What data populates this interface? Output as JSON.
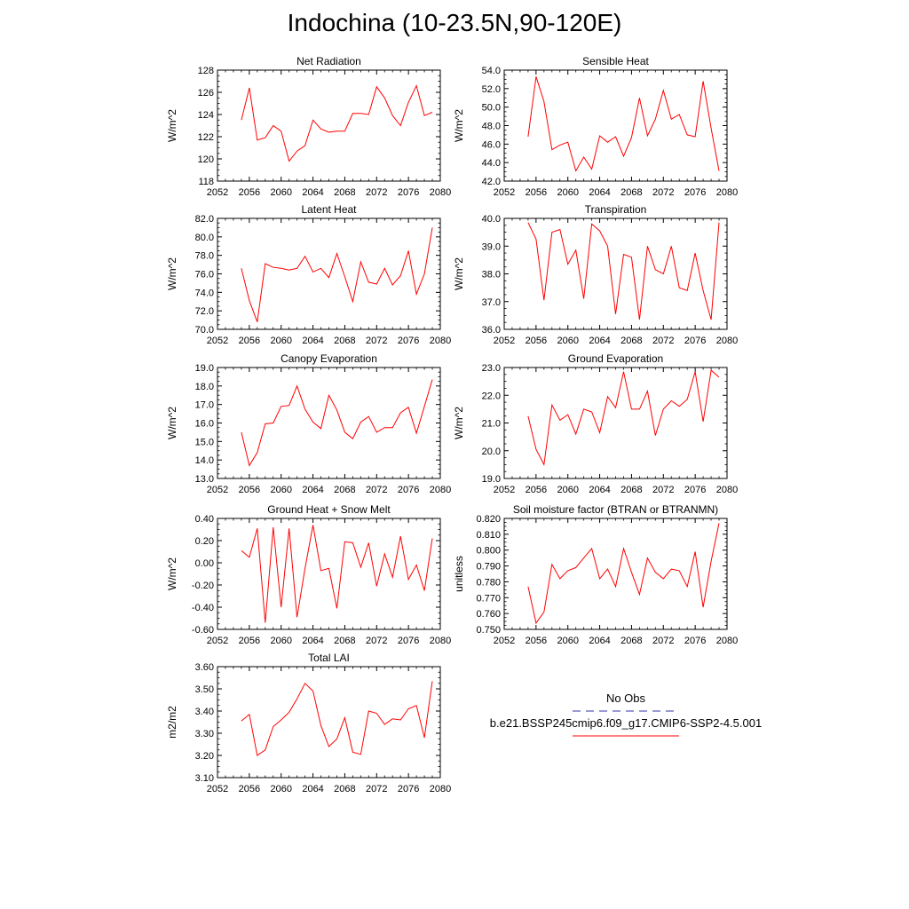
{
  "title": "Indochina (10-23.5N,90-120E)",
  "legend": {
    "obs_label": "No Obs",
    "obs_color": "#3333aa",
    "model_label": "b.e21.BSSP245cmip6.f09_g17.CMIP6-SSP2-4.5.001",
    "model_color": "#ff0000"
  },
  "chart_data": [
    {
      "type": "line",
      "title": "Net Radiation",
      "ylabel": "W/m^2",
      "xlim": [
        2052,
        2080
      ],
      "ylim": [
        118,
        128
      ],
      "xticks": [
        "2052",
        "2056",
        "2060",
        "2064",
        "2068",
        "2072",
        "2076",
        "2080"
      ],
      "yticks": [
        "118",
        "120",
        "122",
        "124",
        "126",
        "128"
      ],
      "series": [
        {
          "color": "#ff0000",
          "x": [
            2055,
            2056,
            2057,
            2058,
            2059,
            2060,
            2061,
            2062,
            2063,
            2064,
            2065,
            2066,
            2067,
            2068,
            2069,
            2070,
            2071,
            2072,
            2073,
            2074,
            2075,
            2076,
            2077,
            2078,
            2079
          ],
          "y": [
            123.5,
            126.4,
            121.7,
            121.9,
            123.0,
            122.5,
            119.8,
            120.7,
            121.2,
            123.5,
            122.7,
            122.4,
            122.5,
            122.5,
            124.1,
            124.1,
            124.0,
            126.5,
            125.5,
            123.9,
            123.0,
            125.1,
            126.6,
            123.9,
            124.2
          ]
        }
      ]
    },
    {
      "type": "line",
      "title": "Sensible Heat",
      "ylabel": "W/m^2",
      "xlim": [
        2052,
        2080
      ],
      "ylim": [
        42,
        54
      ],
      "xticks": [
        "2052",
        "2056",
        "2060",
        "2064",
        "2068",
        "2072",
        "2076",
        "2080"
      ],
      "yticks": [
        "42.0",
        "44.0",
        "46.0",
        "48.0",
        "50.0",
        "52.0",
        "54.0"
      ],
      "series": [
        {
          "color": "#ff0000",
          "x": [
            2055,
            2056,
            2057,
            2058,
            2059,
            2060,
            2061,
            2062,
            2063,
            2064,
            2065,
            2066,
            2067,
            2068,
            2069,
            2070,
            2071,
            2072,
            2073,
            2074,
            2075,
            2076,
            2077,
            2078,
            2079
          ],
          "y": [
            46.8,
            53.3,
            50.6,
            45.4,
            45.9,
            46.2,
            43.1,
            44.6,
            43.3,
            46.9,
            46.2,
            46.8,
            44.7,
            46.7,
            51.0,
            46.9,
            48.7,
            51.8,
            48.7,
            49.2,
            47.0,
            46.8,
            52.8,
            47.7,
            43.1
          ]
        }
      ]
    },
    {
      "type": "line",
      "title": "Latent Heat",
      "ylabel": "W/m^2",
      "xlim": [
        2052,
        2080
      ],
      "ylim": [
        70,
        82
      ],
      "xticks": [
        "2052",
        "2056",
        "2060",
        "2064",
        "2068",
        "2072",
        "2076",
        "2080"
      ],
      "yticks": [
        "70.0",
        "72.0",
        "74.0",
        "76.0",
        "78.0",
        "80.0",
        "82.0"
      ],
      "series": [
        {
          "color": "#ff0000",
          "x": [
            2055,
            2056,
            2057,
            2058,
            2059,
            2060,
            2061,
            2062,
            2063,
            2064,
            2065,
            2066,
            2067,
            2068,
            2069,
            2070,
            2071,
            2072,
            2073,
            2074,
            2075,
            2076,
            2077,
            2078,
            2079
          ],
          "y": [
            76.6,
            73.1,
            70.8,
            77.1,
            76.7,
            76.6,
            76.4,
            76.6,
            77.9,
            76.2,
            76.6,
            75.6,
            78.2,
            75.7,
            73.0,
            77.3,
            75.1,
            74.9,
            76.6,
            74.8,
            75.8,
            78.5,
            73.8,
            76.0,
            81.0
          ]
        }
      ]
    },
    {
      "type": "line",
      "title": "Transpiration",
      "ylabel": "W/m^2",
      "xlim": [
        2052,
        2080
      ],
      "ylim": [
        36,
        40
      ],
      "xticks": [
        "2052",
        "2056",
        "2060",
        "2064",
        "2068",
        "2072",
        "2076",
        "2080"
      ],
      "yticks": [
        "36.0",
        "37.0",
        "38.0",
        "39.0",
        "40.0"
      ],
      "series": [
        {
          "color": "#ff0000",
          "x": [
            2055,
            2056,
            2057,
            2058,
            2059,
            2060,
            2061,
            2062,
            2063,
            2064,
            2065,
            2066,
            2067,
            2068,
            2069,
            2070,
            2071,
            2072,
            2073,
            2074,
            2075,
            2076,
            2077,
            2078,
            2079
          ],
          "y": [
            39.85,
            39.25,
            37.05,
            39.5,
            39.6,
            38.35,
            38.85,
            37.1,
            39.8,
            39.55,
            39.0,
            36.55,
            38.7,
            38.6,
            36.35,
            39.0,
            38.15,
            38.0,
            39.0,
            37.5,
            37.4,
            38.75,
            37.4,
            36.35,
            39.85
          ]
        }
      ]
    },
    {
      "type": "line",
      "title": "Canopy Evaporation",
      "ylabel": "W/m^2",
      "xlim": [
        2052,
        2080
      ],
      "ylim": [
        13,
        19
      ],
      "xticks": [
        "2052",
        "2056",
        "2060",
        "2064",
        "2068",
        "2072",
        "2076",
        "2080"
      ],
      "yticks": [
        "13.0",
        "14.0",
        "15.0",
        "16.0",
        "17.0",
        "18.0",
        "19.0"
      ],
      "series": [
        {
          "color": "#ff0000",
          "x": [
            2055,
            2056,
            2057,
            2058,
            2059,
            2060,
            2061,
            2062,
            2063,
            2064,
            2065,
            2066,
            2067,
            2068,
            2069,
            2070,
            2071,
            2072,
            2073,
            2074,
            2075,
            2076,
            2077,
            2078,
            2079
          ],
          "y": [
            15.5,
            13.7,
            14.4,
            15.95,
            16.0,
            16.9,
            16.95,
            18.0,
            16.75,
            16.05,
            15.7,
            17.5,
            16.7,
            15.5,
            15.15,
            16.05,
            16.35,
            15.5,
            15.75,
            15.75,
            16.55,
            16.85,
            15.45,
            16.9,
            18.35
          ]
        }
      ]
    },
    {
      "type": "line",
      "title": "Ground Evaporation",
      "ylabel": "W/m^2",
      "xlim": [
        2052,
        2080
      ],
      "ylim": [
        19,
        23
      ],
      "xticks": [
        "2052",
        "2056",
        "2060",
        "2064",
        "2068",
        "2072",
        "2076",
        "2080"
      ],
      "yticks": [
        "19.0",
        "20.0",
        "21.0",
        "22.0",
        "23.0"
      ],
      "series": [
        {
          "color": "#ff0000",
          "x": [
            2055,
            2056,
            2057,
            2058,
            2059,
            2060,
            2061,
            2062,
            2063,
            2064,
            2065,
            2066,
            2067,
            2068,
            2069,
            2070,
            2071,
            2072,
            2073,
            2074,
            2075,
            2076,
            2077,
            2078,
            2079
          ],
          "y": [
            21.25,
            20.05,
            19.5,
            21.65,
            21.1,
            21.3,
            20.6,
            21.5,
            21.4,
            20.65,
            21.95,
            21.55,
            22.85,
            21.5,
            21.5,
            22.15,
            20.55,
            21.5,
            21.8,
            21.6,
            21.85,
            22.85,
            21.05,
            22.9,
            22.65
          ]
        }
      ]
    },
    {
      "type": "line",
      "title": "Ground Heat + Snow Melt",
      "ylabel": "W/m^2",
      "xlim": [
        2052,
        2080
      ],
      "ylim": [
        -0.6,
        0.4
      ],
      "xticks": [
        "2052",
        "2056",
        "2060",
        "2064",
        "2068",
        "2072",
        "2076",
        "2080"
      ],
      "yticks": [
        "-0.60",
        "-0.40",
        "-0.20",
        "0.00",
        "0.20",
        "0.40"
      ],
      "series": [
        {
          "color": "#ff0000",
          "x": [
            2055,
            2056,
            2057,
            2058,
            2059,
            2060,
            2061,
            2062,
            2063,
            2064,
            2065,
            2066,
            2067,
            2068,
            2069,
            2070,
            2071,
            2072,
            2073,
            2074,
            2075,
            2076,
            2077,
            2078,
            2079
          ],
          "y": [
            0.11,
            0.05,
            0.31,
            -0.54,
            0.32,
            -0.4,
            0.31,
            -0.49,
            -0.05,
            0.34,
            -0.07,
            -0.05,
            -0.41,
            0.19,
            0.18,
            -0.04,
            0.18,
            -0.21,
            0.08,
            -0.13,
            0.24,
            -0.15,
            -0.02,
            -0.25,
            0.22
          ]
        }
      ]
    },
    {
      "type": "line",
      "title": "Soil moisture factor (BTRAN or BTRANMN)",
      "ylabel": "unitless",
      "xlim": [
        2052,
        2080
      ],
      "ylim": [
        0.75,
        0.82
      ],
      "xticks": [
        "2052",
        "2056",
        "2060",
        "2064",
        "2068",
        "2072",
        "2076",
        "2080"
      ],
      "yticks": [
        "0.750",
        "0.760",
        "0.770",
        "0.780",
        "0.790",
        "0.800",
        "0.810",
        "0.820"
      ],
      "series": [
        {
          "color": "#ff0000",
          "x": [
            2055,
            2056,
            2057,
            2058,
            2059,
            2060,
            2061,
            2062,
            2063,
            2064,
            2065,
            2066,
            2067,
            2068,
            2069,
            2070,
            2071,
            2072,
            2073,
            2074,
            2075,
            2076,
            2077,
            2078,
            2079
          ],
          "y": [
            0.777,
            0.754,
            0.761,
            0.791,
            0.782,
            0.787,
            0.789,
            0.795,
            0.801,
            0.782,
            0.788,
            0.777,
            0.801,
            0.786,
            0.772,
            0.795,
            0.786,
            0.782,
            0.788,
            0.787,
            0.777,
            0.799,
            0.764,
            0.793,
            0.817
          ]
        }
      ]
    },
    {
      "type": "line",
      "title": "Total LAI",
      "ylabel": "m2/m2",
      "xlim": [
        2052,
        2080
      ],
      "ylim": [
        3.1,
        3.6
      ],
      "xticks": [
        "2052",
        "2056",
        "2060",
        "2064",
        "2068",
        "2072",
        "2076",
        "2080"
      ],
      "yticks": [
        "3.10",
        "3.20",
        "3.30",
        "3.40",
        "3.50",
        "3.60"
      ],
      "series": [
        {
          "color": "#ff0000",
          "x": [
            2055,
            2056,
            2057,
            2058,
            2059,
            2060,
            2061,
            2062,
            2063,
            2064,
            2065,
            2066,
            2067,
            2068,
            2069,
            2070,
            2071,
            2072,
            2073,
            2074,
            2075,
            2076,
            2077,
            2078,
            2079
          ],
          "y": [
            3.355,
            3.385,
            3.2,
            3.225,
            3.33,
            3.36,
            3.395,
            3.455,
            3.525,
            3.49,
            3.335,
            3.24,
            3.275,
            3.37,
            3.215,
            3.205,
            3.4,
            3.39,
            3.34,
            3.365,
            3.36,
            3.41,
            3.425,
            3.28,
            3.535
          ]
        }
      ]
    }
  ]
}
